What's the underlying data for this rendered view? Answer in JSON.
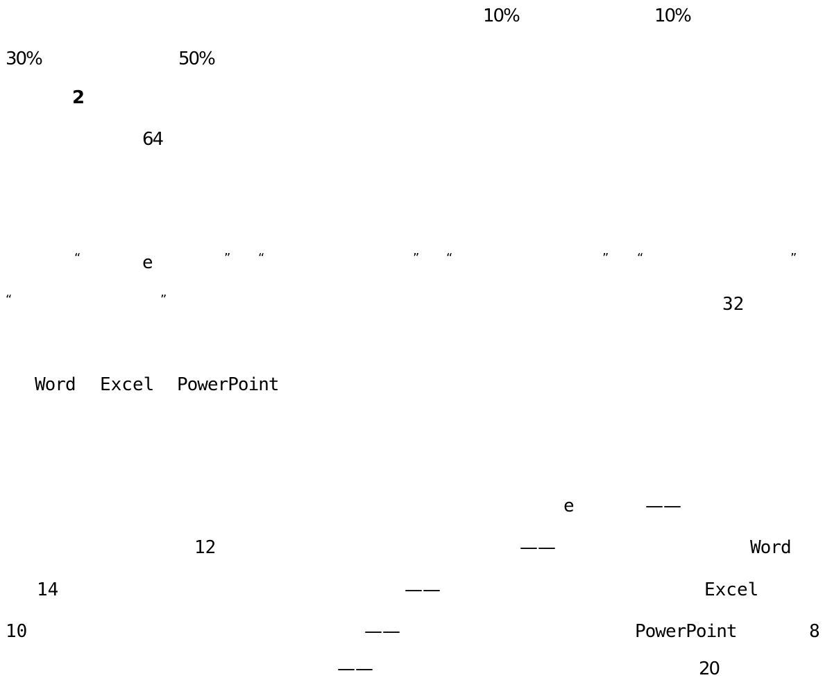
{
  "page": {
    "grade_line": {
      "p1": "10%",
      "p2": "10%",
      "p3": "30%",
      "p4": "50%"
    },
    "section_number": "2",
    "hours_total": "64",
    "quoted_terms": {
      "q_open": "“",
      "q_close": "”",
      "e_letter": "e",
      "lessons": "32"
    },
    "software_list": {
      "word": "Word",
      "excel": "Excel",
      "powerpoint": "PowerPoint"
    },
    "schedule": {
      "e_letter": "e",
      "dash": "——",
      "rows": [
        {
          "hours": "12",
          "software": "Word"
        },
        {
          "hours": "14",
          "software": "Excel"
        },
        {
          "hours": "10",
          "software": "PowerPoint",
          "extra": "8"
        },
        {
          "extra": "20"
        }
      ]
    }
  }
}
